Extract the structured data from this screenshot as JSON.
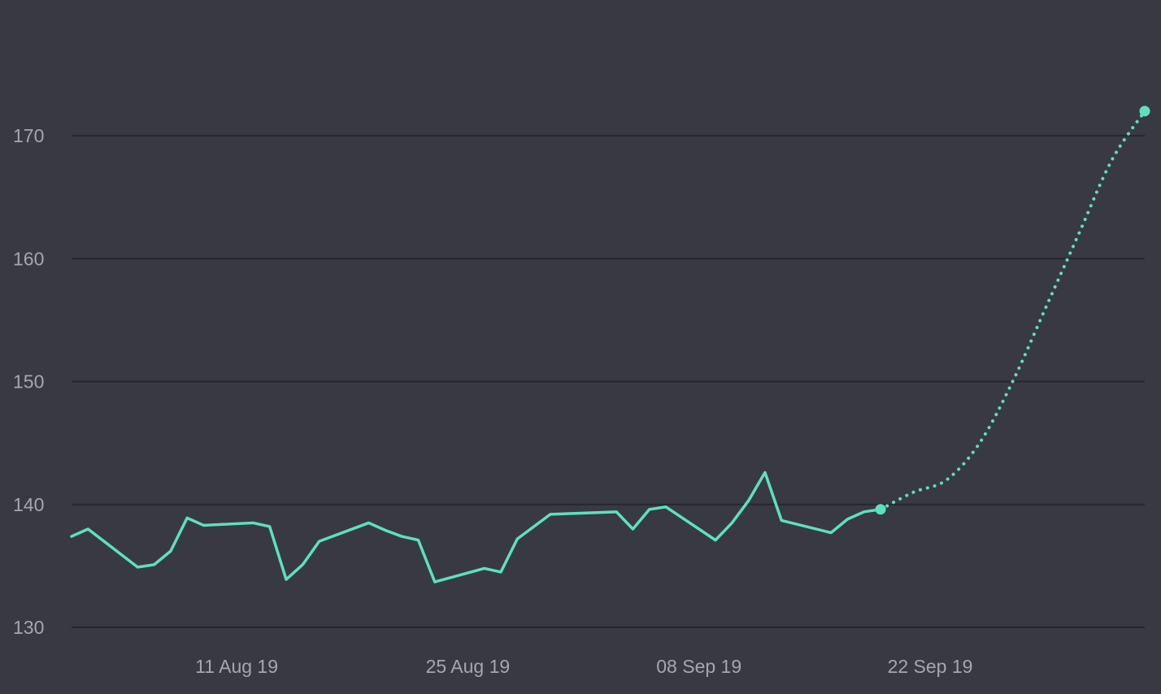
{
  "chart_data": {
    "type": "line",
    "title": "",
    "xlabel": "",
    "ylabel": "",
    "ylim": [
      130,
      170
    ],
    "yticks": [
      130,
      140,
      150,
      160,
      170
    ],
    "grid": true,
    "legend": "none",
    "x_tick_labels": [
      "11 Aug 19",
      "25 Aug 19",
      "08 Sep 19",
      "22 Sep 19"
    ],
    "x_tick_dates": [
      "2019-08-11",
      "2019-08-25",
      "2019-09-08",
      "2019-09-22"
    ],
    "x_start": "2019-08-01",
    "x_end": "2019-10-05",
    "colors": {
      "background": "#393944",
      "grid": "#26262d",
      "series": "#5ce1c0",
      "tick_text": "#a6a6ae"
    },
    "series": [
      {
        "style": "solid",
        "points": [
          {
            "x": "2019-08-01",
            "y": 137.4
          },
          {
            "x": "2019-08-02",
            "y": 138.0
          },
          {
            "x": "2019-08-05",
            "y": 134.9
          },
          {
            "x": "2019-08-06",
            "y": 135.1
          },
          {
            "x": "2019-08-07",
            "y": 136.2
          },
          {
            "x": "2019-08-08",
            "y": 138.9
          },
          {
            "x": "2019-08-09",
            "y": 138.3
          },
          {
            "x": "2019-08-12",
            "y": 138.5
          },
          {
            "x": "2019-08-13",
            "y": 138.2
          },
          {
            "x": "2019-08-14",
            "y": 133.9
          },
          {
            "x": "2019-08-15",
            "y": 135.1
          },
          {
            "x": "2019-08-16",
            "y": 137.0
          },
          {
            "x": "2019-08-19",
            "y": 138.5
          },
          {
            "x": "2019-08-20",
            "y": 137.9
          },
          {
            "x": "2019-08-21",
            "y": 137.4
          },
          {
            "x": "2019-08-22",
            "y": 137.1
          },
          {
            "x": "2019-08-23",
            "y": 133.7
          },
          {
            "x": "2019-08-26",
            "y": 134.8
          },
          {
            "x": "2019-08-27",
            "y": 134.5
          },
          {
            "x": "2019-08-28",
            "y": 137.2
          },
          {
            "x": "2019-08-30",
            "y": 139.2
          },
          {
            "x": "2019-09-03",
            "y": 139.4
          },
          {
            "x": "2019-09-04",
            "y": 138.0
          },
          {
            "x": "2019-09-05",
            "y": 139.6
          },
          {
            "x": "2019-09-06",
            "y": 139.8
          },
          {
            "x": "2019-09-09",
            "y": 137.1
          },
          {
            "x": "2019-09-10",
            "y": 138.5
          },
          {
            "x": "2019-09-11",
            "y": 140.3
          },
          {
            "x": "2019-09-12",
            "y": 142.6
          },
          {
            "x": "2019-09-13",
            "y": 138.7
          },
          {
            "x": "2019-09-16",
            "y": 137.7
          },
          {
            "x": "2019-09-17",
            "y": 138.8
          },
          {
            "x": "2019-09-18",
            "y": 139.4
          },
          {
            "x": "2019-09-19",
            "y": 139.6
          }
        ]
      },
      {
        "style": "dotted",
        "points": [
          {
            "x": "2019-09-19",
            "y": 139.6
          },
          {
            "x": "2019-09-21",
            "y": 141.0
          },
          {
            "x": "2019-09-23",
            "y": 142.0
          },
          {
            "x": "2019-09-25",
            "y": 145.0
          },
          {
            "x": "2019-09-27",
            "y": 150.0
          },
          {
            "x": "2019-09-29",
            "y": 156.0
          },
          {
            "x": "2019-10-01",
            "y": 162.0
          },
          {
            "x": "2019-10-03",
            "y": 168.0
          },
          {
            "x": "2019-10-05",
            "y": 172.0
          }
        ]
      }
    ]
  }
}
